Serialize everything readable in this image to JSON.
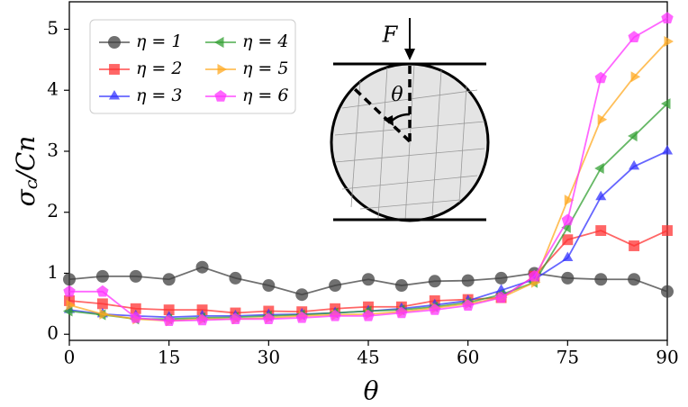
{
  "chart_data": {
    "type": "line",
    "xlabel": "θ",
    "ylabel": {
      "base": "σ",
      "sub": "c",
      "rest": "/Cn"
    },
    "annotations": [
      "F",
      "θ"
    ],
    "x": [
      0,
      5,
      10,
      15,
      20,
      25,
      30,
      35,
      40,
      45,
      50,
      55,
      60,
      65,
      70,
      75,
      80,
      85,
      90
    ],
    "series": [
      {
        "name": "η = 1",
        "color": "#404040",
        "marker": "circle",
        "values": [
          0.9,
          0.95,
          0.95,
          0.9,
          1.1,
          0.92,
          0.8,
          0.65,
          0.8,
          0.9,
          0.8,
          0.87,
          0.88,
          0.92,
          1.0,
          0.92,
          0.9,
          0.9,
          0.7
        ]
      },
      {
        "name": "η = 2",
        "color": "#ff3333",
        "marker": "square",
        "values": [
          0.55,
          0.5,
          0.42,
          0.4,
          0.4,
          0.35,
          0.38,
          0.37,
          0.42,
          0.45,
          0.45,
          0.55,
          0.57,
          0.6,
          0.95,
          1.55,
          1.7,
          1.45,
          1.7
        ]
      },
      {
        "name": "η = 3",
        "color": "#3333ff",
        "marker": "triangle-up",
        "values": [
          0.4,
          0.33,
          0.3,
          0.28,
          0.3,
          0.3,
          0.32,
          0.33,
          0.35,
          0.38,
          0.42,
          0.48,
          0.55,
          0.72,
          0.9,
          1.25,
          2.25,
          2.75,
          3.0
        ]
      },
      {
        "name": "η = 4",
        "color": "#33a033",
        "marker": "triangle-left",
        "values": [
          0.38,
          0.32,
          0.25,
          0.25,
          0.27,
          0.28,
          0.3,
          0.32,
          0.35,
          0.38,
          0.4,
          0.45,
          0.52,
          0.65,
          0.85,
          1.75,
          2.72,
          3.25,
          3.78
        ]
      },
      {
        "name": "η = 5",
        "color": "#ffaa22",
        "marker": "triangle-right",
        "values": [
          0.48,
          0.33,
          0.25,
          0.22,
          0.25,
          0.25,
          0.27,
          0.3,
          0.32,
          0.33,
          0.37,
          0.43,
          0.5,
          0.6,
          0.85,
          2.2,
          3.52,
          4.22,
          4.8
        ]
      },
      {
        "name": "η = 6",
        "color": "#ff33ff",
        "marker": "pentagon",
        "values": [
          0.7,
          0.7,
          0.27,
          0.22,
          0.23,
          0.25,
          0.25,
          0.27,
          0.3,
          0.3,
          0.35,
          0.4,
          0.47,
          0.6,
          0.95,
          1.87,
          4.2,
          4.87,
          5.18
        ]
      }
    ],
    "xlim": [
      0,
      90
    ],
    "ylim": [
      -0.1,
      5.45
    ],
    "xticks": [
      0,
      15,
      30,
      45,
      60,
      75,
      90
    ],
    "yticks": [
      0,
      1,
      2,
      3,
      4,
      5
    ],
    "legend": "upper left",
    "legend_columns": 2
  }
}
